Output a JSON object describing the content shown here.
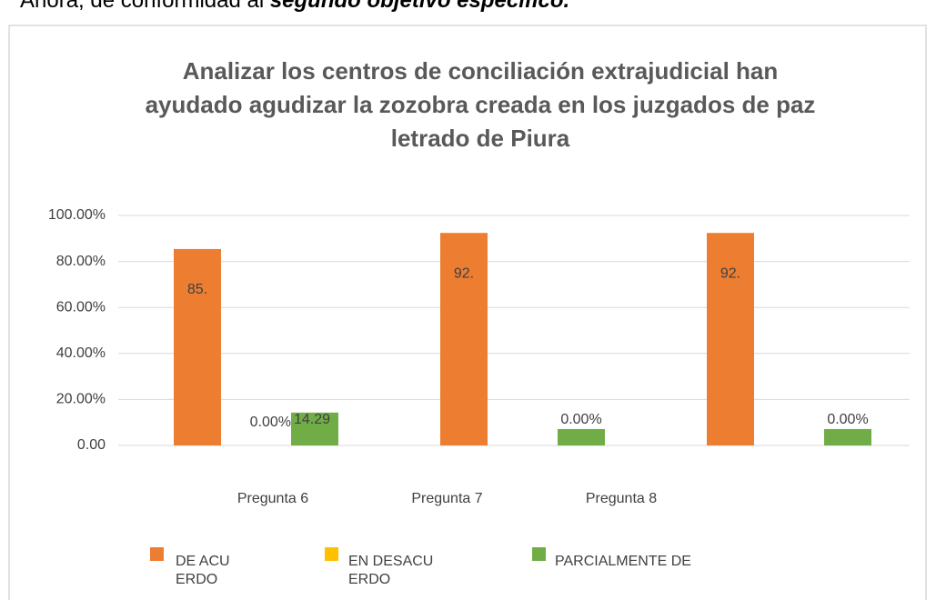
{
  "intro": {
    "text": "Ahora, de conformidad al ",
    "emphasis": "segundo objetivo específico."
  },
  "chart_data": {
    "type": "bar",
    "title": [
      "Analizar los centros de conciliación extrajudicial han",
      "ayudado agudizar la zozobra creada en los juzgados de paz",
      "letrado de Piura"
    ],
    "categories": [
      "Pregunta 6",
      "Pregunta 7",
      "Pregunta 8"
    ],
    "series": [
      {
        "name": "DE ACUERDO",
        "color": "#ed7d31",
        "values": [
          85.4,
          92.4,
          92.4
        ],
        "value_labels": [
          "85.",
          "92.",
          "92."
        ]
      },
      {
        "name": "EN DESACUERDO",
        "color": "#ffc000",
        "values": [
          0,
          0,
          0
        ],
        "value_labels": [
          "0.00%",
          "0.00%",
          "0.00%"
        ]
      },
      {
        "name": "PARCIALMENTE DE",
        "color": "#70ad47",
        "values": [
          14.29,
          7.14,
          7.14
        ],
        "value_labels": [
          "14.29",
          null,
          null
        ]
      }
    ],
    "ylim": [
      0,
      100
    ],
    "yticks": [
      {
        "value": 0,
        "label": "0.00"
      },
      {
        "value": 20,
        "label": "20.00%"
      },
      {
        "value": 40,
        "label": "40.00%"
      },
      {
        "value": 60,
        "label": "60.00%"
      },
      {
        "value": 80,
        "label": "80.00%"
      },
      {
        "value": 100,
        "label": "100.00%"
      }
    ],
    "grid": true,
    "legend": "bottom"
  }
}
